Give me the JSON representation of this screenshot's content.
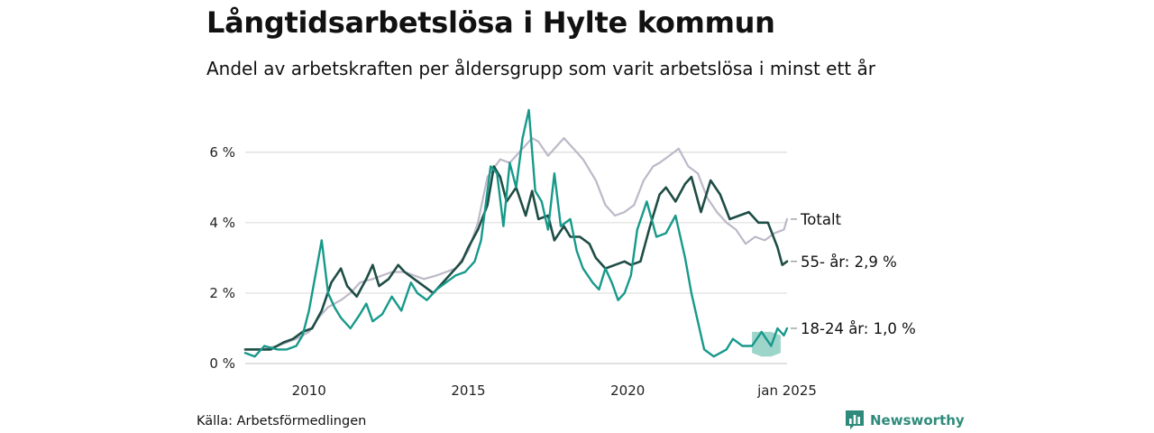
{
  "title": "Långtidsarbetslösa i Hylte kommun",
  "subtitle": "Andel av arbetskraften per åldersgrupp som varit arbetslösa i minst ett år",
  "source": "Källa: Arbetsförmedlingen",
  "brand": "Newsworthy",
  "chart_data": {
    "type": "line",
    "x_range": [
      2008.0,
      2025.0
    ],
    "ylim": [
      0,
      7.3
    ],
    "y_ticks": [
      0,
      2,
      4,
      6
    ],
    "y_tick_labels": [
      "0 %",
      "2 %",
      "4 %",
      "6 %"
    ],
    "x_ticks": [
      2010,
      2015,
      2020,
      2025
    ],
    "x_tick_labels": [
      "2010",
      "2015",
      "2020",
      "jan 2025"
    ],
    "grid": true,
    "colors": {
      "total": "#bdb8c8",
      "age55": "#1e4d45",
      "age18": "#17998a",
      "band": "#7ec7b9"
    },
    "series": [
      {
        "key": "total",
        "end_label": "Totalt",
        "x": [
          2008.0,
          2008.5,
          2009.0,
          2009.3,
          2009.6,
          2010.0,
          2010.3,
          2010.6,
          2011.0,
          2011.3,
          2011.6,
          2012.0,
          2012.3,
          2012.6,
          2013.0,
          2013.3,
          2013.6,
          2014.0,
          2014.3,
          2014.6,
          2015.0,
          2015.3,
          2015.6,
          2016.0,
          2016.3,
          2016.6,
          2017.0,
          2017.2,
          2017.5,
          2017.8,
          2018.0,
          2018.3,
          2018.6,
          2019.0,
          2019.3,
          2019.6,
          2019.9,
          2020.2,
          2020.5,
          2020.8,
          2021.0,
          2021.3,
          2021.6,
          2021.9,
          2022.2,
          2022.5,
          2022.8,
          2023.1,
          2023.4,
          2023.7,
          2024.0,
          2024.3,
          2024.6,
          2024.9,
          2025.0
        ],
        "values": [
          0.4,
          0.4,
          0.5,
          0.6,
          0.7,
          0.9,
          1.3,
          1.6,
          1.8,
          2.0,
          2.3,
          2.4,
          2.5,
          2.6,
          2.6,
          2.5,
          2.4,
          2.5,
          2.6,
          2.7,
          3.2,
          4.0,
          5.3,
          5.8,
          5.7,
          6.0,
          6.4,
          6.3,
          5.9,
          6.2,
          6.4,
          6.1,
          5.8,
          5.2,
          4.5,
          4.2,
          4.3,
          4.5,
          5.2,
          5.6,
          5.7,
          5.9,
          6.1,
          5.6,
          5.4,
          4.7,
          4.3,
          4.0,
          3.8,
          3.4,
          3.6,
          3.5,
          3.7,
          3.8,
          4.1
        ]
      },
      {
        "key": "age55",
        "end_label": "55- år: 2,9 %",
        "x": [
          2008.0,
          2008.4,
          2008.8,
          2009.2,
          2009.5,
          2009.8,
          2010.1,
          2010.4,
          2010.7,
          2011.0,
          2011.2,
          2011.5,
          2011.8,
          2012.0,
          2012.2,
          2012.5,
          2012.8,
          2013.0,
          2013.3,
          2013.6,
          2013.9,
          2014.2,
          2014.5,
          2014.8,
          2015.0,
          2015.3,
          2015.6,
          2015.8,
          2016.0,
          2016.2,
          2016.5,
          2016.8,
          2017.0,
          2017.2,
          2017.5,
          2017.7,
          2018.0,
          2018.2,
          2018.5,
          2018.8,
          2019.0,
          2019.3,
          2019.6,
          2019.9,
          2020.1,
          2020.4,
          2020.7,
          2021.0,
          2021.2,
          2021.5,
          2021.8,
          2022.0,
          2022.3,
          2022.6,
          2022.9,
          2023.2,
          2023.5,
          2023.8,
          2024.1,
          2024.4,
          2024.7,
          2024.85,
          2025.0
        ],
        "values": [
          0.4,
          0.4,
          0.4,
          0.6,
          0.7,
          0.9,
          1.0,
          1.5,
          2.3,
          2.7,
          2.2,
          1.9,
          2.4,
          2.8,
          2.2,
          2.4,
          2.8,
          2.6,
          2.4,
          2.2,
          2.0,
          2.3,
          2.6,
          2.9,
          3.3,
          3.8,
          4.5,
          5.6,
          5.3,
          4.6,
          5.0,
          4.2,
          4.9,
          4.1,
          4.2,
          3.5,
          3.9,
          3.6,
          3.6,
          3.4,
          3.0,
          2.7,
          2.8,
          2.9,
          2.8,
          2.9,
          3.9,
          4.8,
          5.0,
          4.6,
          5.1,
          5.3,
          4.3,
          5.2,
          4.8,
          4.1,
          4.2,
          4.3,
          4.0,
          4.0,
          3.3,
          2.8,
          2.9
        ]
      },
      {
        "key": "age18",
        "end_label": "18-24 år: 1,0 %",
        "x": [
          2008.0,
          2008.3,
          2008.6,
          2009.0,
          2009.3,
          2009.6,
          2009.8,
          2010.0,
          2010.2,
          2010.4,
          2010.6,
          2010.8,
          2011.0,
          2011.3,
          2011.6,
          2011.8,
          2012.0,
          2012.3,
          2012.6,
          2012.9,
          2013.2,
          2013.4,
          2013.7,
          2014.0,
          2014.3,
          2014.6,
          2014.9,
          2015.2,
          2015.4,
          2015.7,
          2015.9,
          2016.1,
          2016.3,
          2016.5,
          2016.7,
          2016.9,
          2017.1,
          2017.3,
          2017.5,
          2017.7,
          2017.9,
          2018.2,
          2018.4,
          2018.6,
          2018.9,
          2019.1,
          2019.3,
          2019.5,
          2019.7,
          2019.9,
          2020.1,
          2020.3,
          2020.6,
          2020.9,
          2021.2,
          2021.5,
          2021.8,
          2022.0,
          2022.2,
          2022.4,
          2022.7,
          2022.9,
          2023.1,
          2023.3,
          2023.6,
          2023.9,
          2024.2,
          2024.5,
          2024.7,
          2024.9,
          2025.0
        ],
        "values": [
          0.3,
          0.2,
          0.5,
          0.4,
          0.4,
          0.5,
          0.8,
          1.5,
          2.5,
          3.5,
          2.0,
          1.6,
          1.3,
          1.0,
          1.4,
          1.7,
          1.2,
          1.4,
          1.9,
          1.5,
          2.3,
          2.0,
          1.8,
          2.1,
          2.3,
          2.5,
          2.6,
          2.9,
          3.5,
          5.6,
          5.4,
          3.9,
          5.7,
          5.0,
          6.4,
          7.2,
          4.9,
          4.6,
          3.8,
          5.4,
          3.9,
          4.1,
          3.2,
          2.7,
          2.3,
          2.1,
          2.7,
          2.3,
          1.8,
          2.0,
          2.5,
          3.8,
          4.6,
          3.6,
          3.7,
          4.2,
          3.0,
          2.0,
          1.2,
          0.4,
          0.2,
          0.3,
          0.4,
          0.7,
          0.5,
          0.5,
          0.9,
          0.5,
          1.0,
          0.8,
          1.0
        ]
      }
    ],
    "band": {
      "x": [
        2023.9,
        2024.2,
        2024.5,
        2024.8
      ],
      "low": [
        0.3,
        0.2,
        0.2,
        0.3
      ],
      "high": [
        0.9,
        0.9,
        0.9,
        0.8
      ]
    }
  }
}
